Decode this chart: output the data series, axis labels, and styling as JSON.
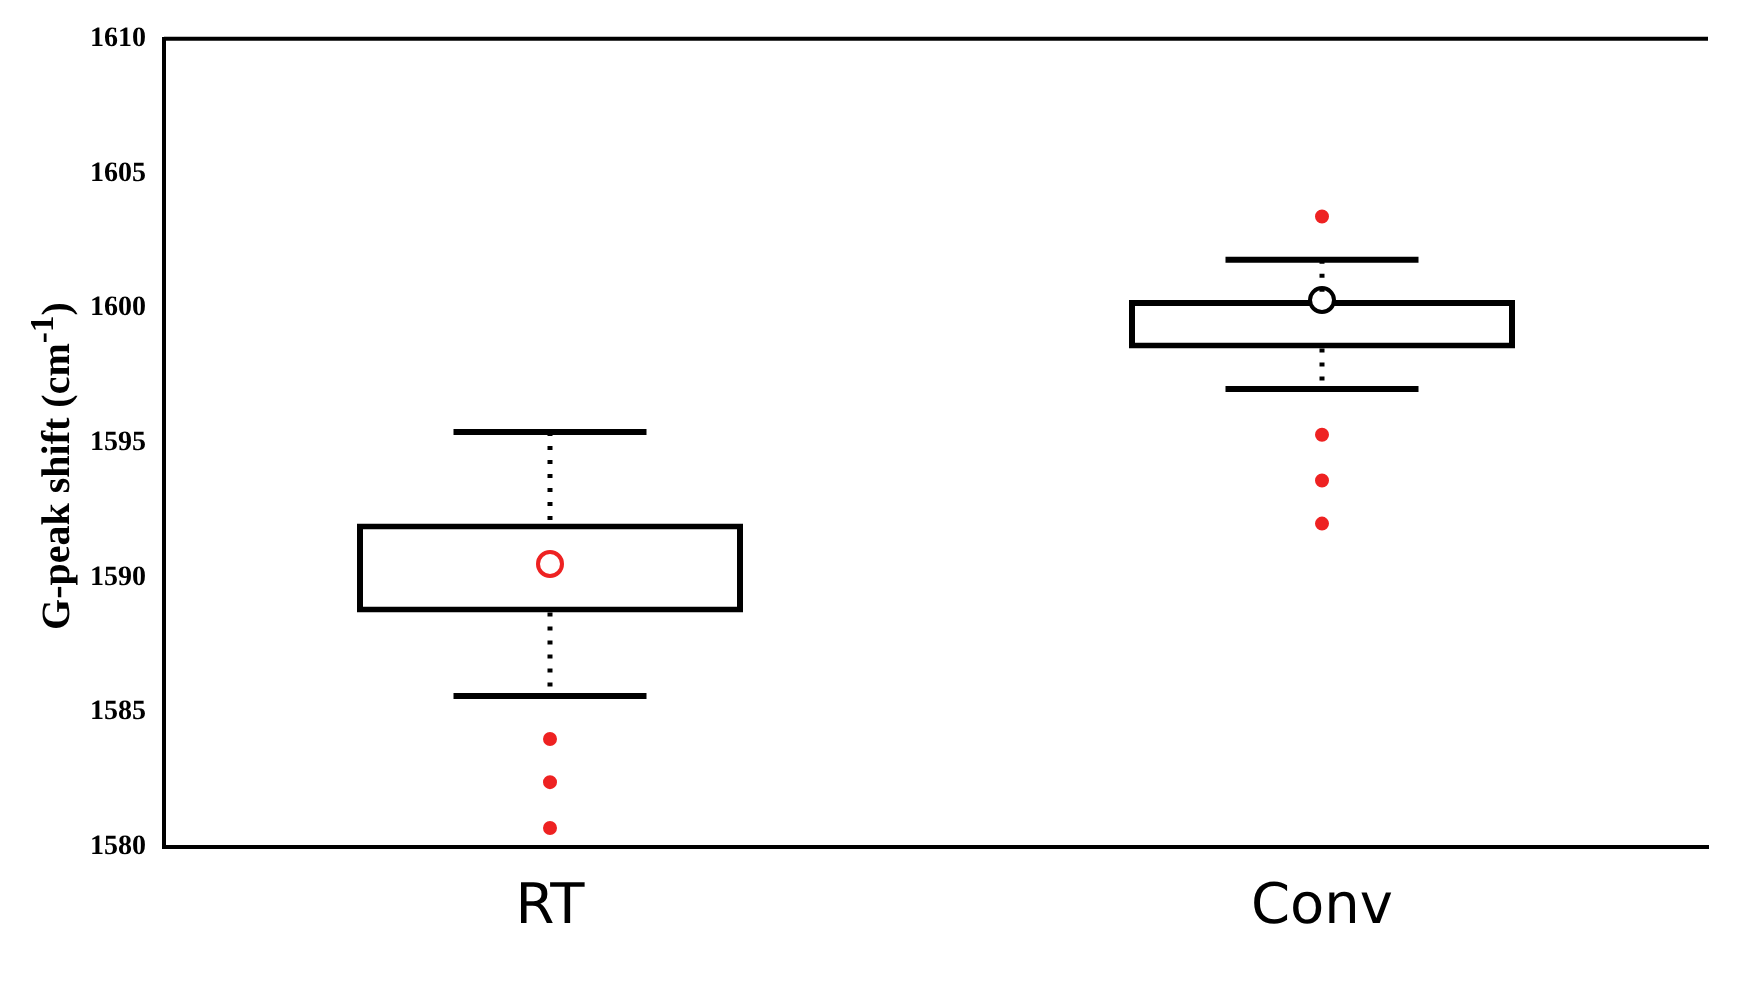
{
  "chart_data": {
    "type": "box",
    "ylabel": "G-peak shift (cm$^{-1}$)",
    "categories": [
      "RT",
      "Conv"
    ],
    "ylim": [
      1580,
      1610
    ],
    "yticks": [
      1580,
      1585,
      1590,
      1595,
      1600,
      1605,
      1610
    ],
    "grid": false,
    "legend": false,
    "series": [
      {
        "color": "#000000",
        "boxes": [
          {
            "low": 1585.6,
            "q1": 1588.7,
            "q3": 1592.0,
            "high": 1595.4
          },
          {
            "low": 1597.0,
            "q1": 1598.5,
            "q3": 1600.3,
            "high": 1601.8
          }
        ]
      },
      {
        "type": "scatter",
        "marker": "circle",
        "colors": [
          "#ee2222",
          "#000000"
        ],
        "x": [
          "RT",
          "Conv"
        ],
        "values": [
          1590.5,
          1600.3
        ]
      },
      {
        "type": "scatter",
        "color": "#ee2222",
        "x": [
          "RT",
          "RT",
          "RT",
          "Conv",
          "Conv",
          "Conv",
          "Conv"
        ],
        "values": [
          1584.0,
          1582.4,
          1580.7,
          1603.4,
          1595.3,
          1593.6,
          1592.0
        ]
      }
    ]
  }
}
